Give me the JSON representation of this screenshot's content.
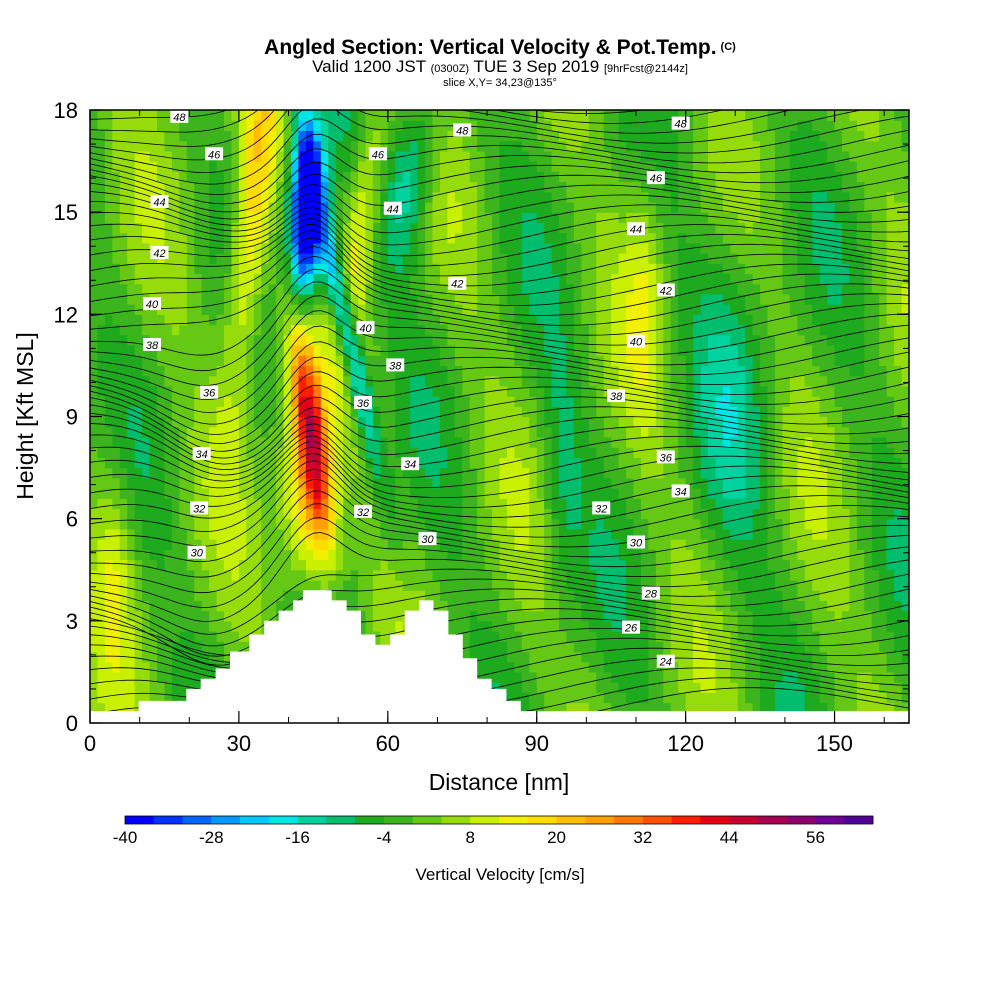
{
  "header": {
    "title": "Angled Section: Vertical Velocity & Pot.Temp.",
    "copyright": "(C)",
    "valid_prefix": "Valid 1200 JST",
    "valid_utc": "(0300Z)",
    "valid_date": "TUE 3 Sep 2019",
    "forecast": "[9hrFcst@2144z]",
    "slice": "slice X,Y= 34,23@135°"
  },
  "chart_data": {
    "type": "heatmap",
    "xlabel": "Distance [nm]",
    "ylabel": "Height [Kft MSL]",
    "xlim": [
      0,
      165
    ],
    "ylim": [
      0,
      18
    ],
    "x_ticks": [
      0,
      30,
      60,
      90,
      120,
      150
    ],
    "y_ticks": [
      0,
      3,
      6,
      9,
      12,
      15,
      18
    ],
    "x_tick_labels": [
      "0",
      "30",
      "60",
      "90",
      "120",
      "150"
    ],
    "y_tick_labels": [
      "0",
      "3",
      "6",
      "9",
      "12",
      "15",
      "18"
    ],
    "colorbar": {
      "title": "Vertical Velocity [cm/s]",
      "min": -40,
      "max": 64,
      "step": 4,
      "tick_labels": [
        "-40",
        "-28",
        "-16",
        "-4",
        "8",
        "20",
        "32",
        "44",
        "56"
      ],
      "tick_values": [
        -40,
        -28,
        -16,
        -4,
        8,
        20,
        32,
        44,
        56
      ],
      "colors": [
        "#0000ff",
        "#0033ff",
        "#0066ff",
        "#0099ff",
        "#00c8ff",
        "#00e6e6",
        "#00d2a0",
        "#00be6e",
        "#1eaa1e",
        "#3cb41e",
        "#64c814",
        "#96dc0a",
        "#c8f000",
        "#f0f000",
        "#ffdc00",
        "#ffbe00",
        "#ffa000",
        "#ff7800",
        "#ff5000",
        "#ff1e00",
        "#e60014",
        "#c80032",
        "#aa0050",
        "#8c0070",
        "#6e0096",
        "#500096"
      ]
    },
    "terrain_profile": {
      "x": [
        0,
        9.8,
        9.8,
        19.4,
        19.4,
        22.3,
        22.3,
        25.3,
        25.3,
        28.2,
        28.2,
        32.1,
        32.1,
        35.1,
        35.1,
        38.0,
        38.0,
        40.9,
        40.9,
        42.9,
        42.9,
        45.8,
        45.8,
        48.7,
        48.7,
        51.7,
        51.7,
        54.6,
        54.6,
        57.5,
        57.5,
        60.5,
        60.5,
        63.4,
        63.4,
        66.3,
        66.3,
        69.2,
        69.2,
        72.2,
        72.2,
        75.1,
        75.1,
        78.0,
        78.0,
        80.9,
        80.9,
        83.9,
        83.9,
        86.8,
        86.8,
        165
      ],
      "z_kft": [
        0.35,
        0.35,
        0.65,
        0.65,
        1.0,
        1.0,
        1.3,
        1.3,
        1.6,
        1.6,
        2.1,
        2.1,
        2.6,
        2.6,
        3.0,
        3.0,
        3.3,
        3.3,
        3.6,
        3.6,
        3.9,
        3.9,
        3.9,
        3.9,
        3.6,
        3.6,
        3.3,
        3.3,
        2.6,
        2.6,
        2.3,
        2.3,
        2.6,
        2.6,
        3.3,
        3.3,
        3.6,
        3.6,
        3.3,
        3.3,
        2.6,
        2.6,
        1.9,
        1.9,
        1.3,
        1.3,
        1.0,
        1.0,
        0.65,
        0.65,
        0.35,
        0.35
      ]
    },
    "updraft_core": {
      "x": 45,
      "z_kft": 8.5,
      "peak_cm_s": 44
    },
    "downdraft_core": {
      "x": 44,
      "z_kft": 15,
      "min_cm_s": -40
    },
    "theta_contours": {
      "levels": [
        24,
        26,
        28,
        30,
        32,
        34,
        36,
        38,
        40,
        42,
        44,
        46,
        48
      ],
      "labels": [
        {
          "text": "48",
          "x": 18,
          "y": 17.8
        },
        {
          "text": "46",
          "x": 25,
          "y": 16.7
        },
        {
          "text": "44",
          "x": 14,
          "y": 15.3
        },
        {
          "text": "42",
          "x": 14,
          "y": 13.8
        },
        {
          "text": "40",
          "x": 12.5,
          "y": 12.3
        },
        {
          "text": "38",
          "x": 12.5,
          "y": 11.1
        },
        {
          "text": "36",
          "x": 24,
          "y": 9.7
        },
        {
          "text": "34",
          "x": 22.5,
          "y": 7.9
        },
        {
          "text": "32",
          "x": 22,
          "y": 6.3
        },
        {
          "text": "30",
          "x": 21.5,
          "y": 5.0
        },
        {
          "text": "48",
          "x": 75,
          "y": 17.4
        },
        {
          "text": "46",
          "x": 58,
          "y": 16.7
        },
        {
          "text": "44",
          "x": 61,
          "y": 15.1
        },
        {
          "text": "42",
          "x": 74,
          "y": 12.9
        },
        {
          "text": "40",
          "x": 55.5,
          "y": 11.6
        },
        {
          "text": "38",
          "x": 61.5,
          "y": 10.5
        },
        {
          "text": "36",
          "x": 55,
          "y": 9.4
        },
        {
          "text": "34",
          "x": 64.5,
          "y": 7.6
        },
        {
          "text": "32",
          "x": 55,
          "y": 6.2
        },
        {
          "text": "30",
          "x": 68,
          "y": 5.4
        },
        {
          "text": "48",
          "x": 119,
          "y": 17.6
        },
        {
          "text": "46",
          "x": 114,
          "y": 16.0
        },
        {
          "text": "44",
          "x": 110,
          "y": 14.5
        },
        {
          "text": "42",
          "x": 116,
          "y": 12.7
        },
        {
          "text": "40",
          "x": 110,
          "y": 11.2
        },
        {
          "text": "38",
          "x": 106,
          "y": 9.6
        },
        {
          "text": "36",
          "x": 116,
          "y": 7.8
        },
        {
          "text": "34",
          "x": 119,
          "y": 6.8
        },
        {
          "text": "32",
          "x": 103,
          "y": 6.3
        },
        {
          "text": "30",
          "x": 110,
          "y": 5.3
        },
        {
          "text": "28",
          "x": 113,
          "y": 3.8
        },
        {
          "text": "26",
          "x": 109,
          "y": 2.8
        },
        {
          "text": "24",
          "x": 116,
          "y": 1.8
        }
      ]
    }
  }
}
